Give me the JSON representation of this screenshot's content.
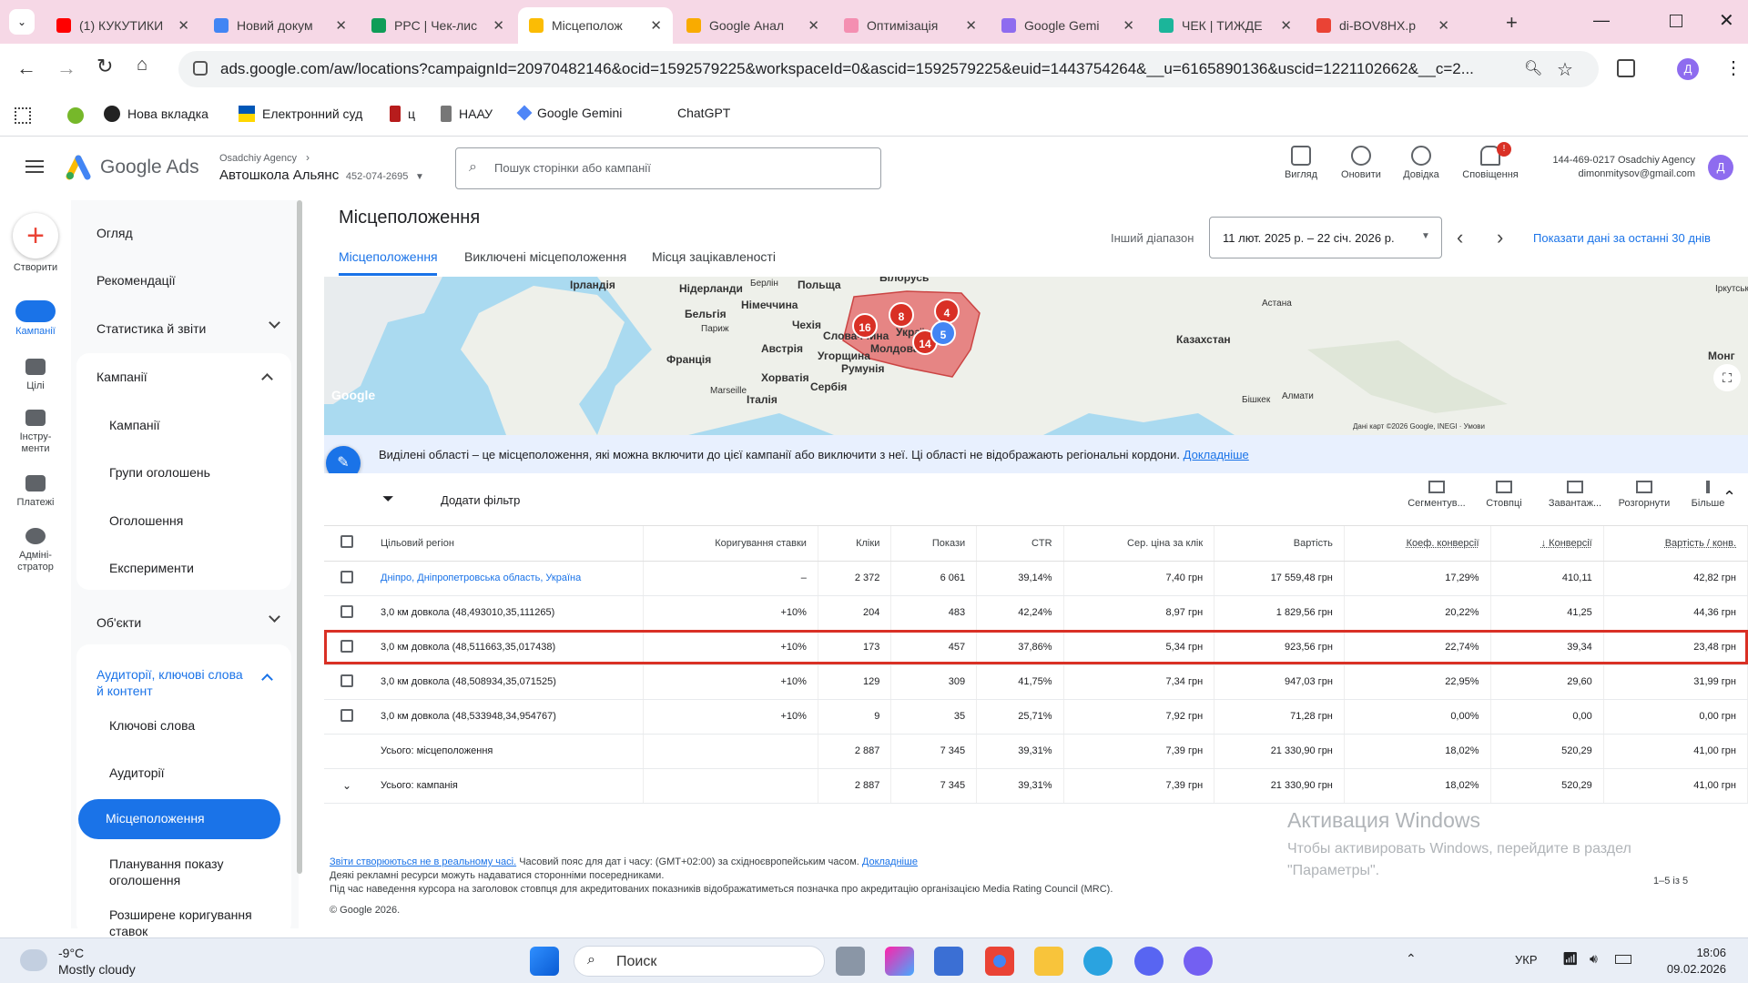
{
  "browser": {
    "tabs": [
      {
        "title": "(1) КУКУТИКИ",
        "color": "#ff0000"
      },
      {
        "title": "Новий докум",
        "color": "#4285f4"
      },
      {
        "title": "PPC | Чек-лис",
        "color": "#0f9d58"
      },
      {
        "title": "Місцеполож",
        "color": "#fbbc04"
      },
      {
        "title": "Google Анал",
        "color": "#f9ab00"
      },
      {
        "title": "Оптимізація",
        "color": "#f48fb1"
      },
      {
        "title": "Google Gemi",
        "color": "#8e6cef"
      },
      {
        "title": "ЧЕК | ТИЖДЕ",
        "color": "#1bb59a"
      },
      {
        "title": "di-BOV8HX.p",
        "color": "#ea4335"
      }
    ],
    "url": "ads.google.com/aw/locations?campaignId=20970482146&ocid=1592579225&workspaceId=0&ascid=1592579225&euid=1443754264&__u=6165890136&uscid=1221102662&__c=2...",
    "bookmarks": [
      "Нова вкладка",
      "Електронний суд",
      "ц",
      "НААУ",
      "Google Gemini",
      "ChatGPT"
    ],
    "profile_letter": "Д"
  },
  "ads": {
    "logo": "Google Ads",
    "agency": "Osadchiy Agency",
    "account": "Автошкола Альянс",
    "account_id": "452-074-2695",
    "search_placeholder": "Пошук сторінки або кампанії",
    "header_buttons": [
      "Вигляд",
      "Оновити",
      "Довідка",
      "Сповіщення"
    ],
    "notif_count": "!",
    "user_line1": "144-469-0217 Osadchiy Agency",
    "user_line2": "dimonmitysov@gmail.com",
    "user_letter": "Д"
  },
  "rail": [
    "Створити",
    "Кампанії",
    "Цілі",
    "Інстру-\nменти",
    "Платежі",
    "Адміні-\nстратор"
  ],
  "nav": {
    "top": [
      "Огляд",
      "Рекомендації",
      "Статистика й звіти"
    ],
    "campaigns_title": "Кампанії",
    "campaigns_items": [
      "Кампанії",
      "Групи оголошень",
      "Оголошення",
      "Експерименти"
    ],
    "objects": "Об'єкти",
    "audiences_title": "Аудиторії, ключові слова й контент",
    "audiences_items": [
      "Ключові слова",
      "Аудиторії",
      "Місцеположення",
      "Планування показу оголошення",
      "Розширене коригування ставок"
    ]
  },
  "page": {
    "title": "Місцеположення",
    "subtabs": [
      "Місцеположення",
      "Виключені місцеположення",
      "Місця зацікавленості"
    ],
    "range_label": "Інший діапазон",
    "date_range": "11 лют. 2025 р. – 22 січ. 2026 р.",
    "last30": "Показати дані за останні 30 днів"
  },
  "map": {
    "labels": [
      "Ірландія",
      "Нідерланди",
      "Берлін",
      "Польща",
      "Білорусь",
      "Бельгія",
      "Німеччина",
      "Париж",
      "Франція",
      "Чехія",
      "Словаччина",
      "Австрія",
      "Угорщина",
      "Молдова",
      "Румунія",
      "Хорватія",
      "Сербія",
      "Італія",
      "Marseille",
      "Україна",
      "Казахстан",
      "Астана",
      "Алмати",
      "Бішкек",
      "Монг",
      "Іркутськ"
    ],
    "clusters": [
      "16",
      "8",
      "4",
      "14",
      "5"
    ],
    "brand": "Google",
    "attribution": "Дані карт ©2026 Google, INEGI · Умови"
  },
  "info": {
    "text": "Виділені області – це місцеположення, які можна включити до цієї кампанії або виключити з неї. Ці області не відображають регіональні кордони.",
    "link": "Докладніше"
  },
  "toolbar": {
    "add_filter": "Додати фільтр",
    "buttons": [
      "Сегментув...",
      "Стовпці",
      "Завантаж...",
      "Розгорнути",
      "Більше"
    ]
  },
  "table": {
    "headers": [
      "Цільовий регіон",
      "Коригування ставки",
      "Кліки",
      "Покази",
      "CTR",
      "Сер. ціна за клік",
      "Вартість",
      "Коеф. конверсії",
      "↓ Конверсії",
      "Вартість / конв."
    ],
    "rows": [
      [
        "Дніпро, Дніпропетровська область, Україна",
        "–",
        "2 372",
        "6 061",
        "39,14%",
        "7,40 грн",
        "17 559,48 грн",
        "17,29%",
        "410,11",
        "42,82 грн"
      ],
      [
        "3,0 км довкола (48,493010,35,111265)",
        "+10%",
        "204",
        "483",
        "42,24%",
        "8,97 грн",
        "1 829,56 грн",
        "20,22%",
        "41,25",
        "44,36 грн"
      ],
      [
        "3,0 км довкола (48,511663,35,017438)",
        "+10%",
        "173",
        "457",
        "37,86%",
        "5,34 грн",
        "923,56 грн",
        "22,74%",
        "39,34",
        "23,48 грн"
      ],
      [
        "3,0 км довкола (48,508934,35,071525)",
        "+10%",
        "129",
        "309",
        "41,75%",
        "7,34 грн",
        "947,03 грн",
        "22,95%",
        "29,60",
        "31,99 грн"
      ],
      [
        "3,0 км довкола (48,533948,34,954767)",
        "+10%",
        "9",
        "35",
        "25,71%",
        "7,92 грн",
        "71,28 грн",
        "0,00%",
        "0,00",
        "0,00 грн"
      ]
    ],
    "totals": [
      [
        "Усього: місцеположення",
        "",
        "2 887",
        "7 345",
        "39,31%",
        "7,39 грн",
        "21 330,90 грн",
        "18,02%",
        "520,29",
        "41,00 грн"
      ],
      [
        "Усього: кампанія",
        "",
        "2 887",
        "7 345",
        "39,31%",
        "7,39 грн",
        "21 330,90 грн",
        "18,02%",
        "520,29",
        "41,00 грн"
      ]
    ],
    "pagination": "1–5 із 5"
  },
  "footer": {
    "line1a": "Звіти створюються не в реальному часі.",
    "line1b": " Часовий пояс для дат і часу: (GMT+02:00) за східноєвропейським часом. ",
    "line1c": "Докладніше",
    "line2": "Деякі рекламні ресурси можуть надаватися сторонніми посередниками.",
    "line3": "Під час наведення курсора на заголовок стовпця для акредитованих показників відображатиметься позначка про акредитацію організацією Media Rating Council (MRC).",
    "copyright": "© Google 2026."
  },
  "watermark": {
    "title": "Активация Windows",
    "text": "Чтобы активировать Windows, перейдите в раздел \"Параметры\"."
  },
  "taskbar": {
    "temp": "-9°C",
    "weather": "Mostly cloudy",
    "search": "Поиск",
    "lang": "УКР",
    "time": "18:06",
    "date": "09.02.2026"
  }
}
